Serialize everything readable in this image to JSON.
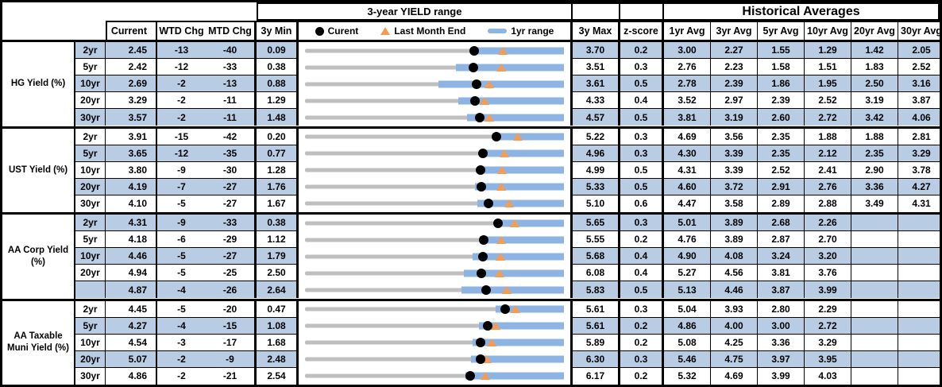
{
  "header": {
    "top": {
      "yield_range": "3-year YIELD range",
      "historical": "Historical Averages"
    },
    "cols": {
      "current": "Current",
      "wtd": "WTD Chg",
      "mtd": "MTD Chg",
      "min3y": "3y Min",
      "max3y": "3y Max",
      "zscore": "z-score",
      "avgs": [
        "1yr Avg",
        "3yr Avg",
        "5yr Avg",
        "10yr Avg",
        "20yr Avg",
        "30yr Avg"
      ]
    },
    "legend": {
      "current": "Curent",
      "last_month": "Last Month End",
      "range1yr": "1yr range"
    }
  },
  "colors": {
    "row_shade": "#B8CCE4",
    "bar_blue": "#8DB4E2",
    "track_gray": "#BFBFBF",
    "marker_orange": "#F49C54",
    "marker_black": "#000000"
  },
  "chart_data": {
    "type": "table",
    "title": "3-year YIELD range",
    "note": "Each row has a bullet chart: gray track spans 3y Min..3y Max, blue bar = 1yr range, black dot = current yield, orange triangle = last month end.",
    "groups": [
      {
        "label": "HG Yield (%)",
        "rows": [
          {
            "tenor": "2yr",
            "current": "2.45",
            "wtd": "-13",
            "mtd": "-40",
            "min": "0.09",
            "max": "3.70",
            "z": "0.2",
            "avgs": [
              "3.00",
              "2.27",
              "1.55",
              "1.29",
              "1.42",
              "2.05"
            ],
            "chart": {
              "min": 0.09,
              "max": 3.7,
              "cur": 2.45,
              "lme": 2.85,
              "lo": 2.4
            }
          },
          {
            "tenor": "5yr",
            "current": "2.42",
            "wtd": "-12",
            "mtd": "-33",
            "min": "0.38",
            "max": "3.51",
            "z": "0.3",
            "avgs": [
              "2.76",
              "2.23",
              "1.58",
              "1.51",
              "1.83",
              "2.52"
            ],
            "chart": {
              "min": 0.38,
              "max": 3.51,
              "cur": 2.42,
              "lme": 2.75,
              "lo": 2.2
            }
          },
          {
            "tenor": "10yr",
            "current": "2.69",
            "wtd": "-2",
            "mtd": "-13",
            "min": "0.88",
            "max": "3.61",
            "z": "0.5",
            "avgs": [
              "2.78",
              "2.39",
              "1.86",
              "1.95",
              "2.50",
              "3.16"
            ],
            "chart": {
              "min": 0.88,
              "max": 3.61,
              "cur": 2.69,
              "lme": 2.82,
              "lo": 2.29
            }
          },
          {
            "tenor": "20yr",
            "current": "3.29",
            "wtd": "-2",
            "mtd": "-11",
            "min": "1.29",
            "max": "4.33",
            "z": "0.4",
            "avgs": [
              "3.52",
              "2.97",
              "2.39",
              "2.52",
              "3.19",
              "3.87"
            ],
            "chart": {
              "min": 1.29,
              "max": 4.33,
              "cur": 3.29,
              "lme": 3.4,
              "lo": 3.09
            }
          },
          {
            "tenor": "30yr",
            "current": "3.57",
            "wtd": "-2",
            "mtd": "-11",
            "min": "1.48",
            "max": "4.57",
            "z": "0.5",
            "avgs": [
              "3.81",
              "3.19",
              "2.60",
              "2.72",
              "3.42",
              "4.06"
            ],
            "chart": {
              "min": 1.48,
              "max": 4.57,
              "cur": 3.57,
              "lme": 3.68,
              "lo": 3.41
            }
          }
        ]
      },
      {
        "label": "UST Yield (%)",
        "rows": [
          {
            "tenor": "2yr",
            "current": "3.91",
            "wtd": "-15",
            "mtd": "-42",
            "min": "0.20",
            "max": "5.22",
            "z": "0.3",
            "avgs": [
              "4.69",
              "3.56",
              "2.35",
              "1.88",
              "1.88",
              "2.81"
            ],
            "chart": {
              "min": 0.2,
              "max": 5.22,
              "cur": 3.91,
              "lme": 4.33,
              "lo": 3.88
            }
          },
          {
            "tenor": "5yr",
            "current": "3.65",
            "wtd": "-12",
            "mtd": "-35",
            "min": "0.77",
            "max": "4.96",
            "z": "0.3",
            "avgs": [
              "4.30",
              "3.39",
              "2.35",
              "2.12",
              "2.35",
              "3.29"
            ],
            "chart": {
              "min": 0.77,
              "max": 4.96,
              "cur": 3.65,
              "lme": 4.0,
              "lo": 3.6
            }
          },
          {
            "tenor": "10yr",
            "current": "3.80",
            "wtd": "-9",
            "mtd": "-30",
            "min": "1.28",
            "max": "4.99",
            "z": "0.5",
            "avgs": [
              "4.31",
              "3.39",
              "2.52",
              "2.41",
              "2.90",
              "3.78"
            ],
            "chart": {
              "min": 1.28,
              "max": 4.99,
              "cur": 3.8,
              "lme": 4.1,
              "lo": 3.75
            }
          },
          {
            "tenor": "20yr",
            "current": "4.19",
            "wtd": "-7",
            "mtd": "-27",
            "min": "1.76",
            "max": "5.33",
            "z": "0.5",
            "avgs": [
              "4.60",
              "3.72",
              "2.91",
              "2.76",
              "3.36",
              "4.27"
            ],
            "chart": {
              "min": 1.76,
              "max": 5.33,
              "cur": 4.19,
              "lme": 4.46,
              "lo": 4.1
            }
          },
          {
            "tenor": "30yr",
            "current": "4.10",
            "wtd": "-5",
            "mtd": "-27",
            "min": "1.67",
            "max": "5.10",
            "z": "0.6",
            "avgs": [
              "4.47",
              "3.58",
              "2.89",
              "2.88",
              "3.49",
              "4.31"
            ],
            "chart": {
              "min": 1.67,
              "max": 5.1,
              "cur": 4.1,
              "lme": 4.37,
              "lo": 3.95
            }
          }
        ]
      },
      {
        "label": "AA Corp Yield (%)",
        "rows": [
          {
            "tenor": "2yr",
            "current": "4.31",
            "wtd": "-9",
            "mtd": "-33",
            "min": "0.38",
            "max": "5.65",
            "z": "0.3",
            "avgs": [
              "5.01",
              "3.89",
              "2.68",
              "2.26",
              "",
              ""
            ],
            "chart": {
              "min": 0.38,
              "max": 5.65,
              "cur": 4.31,
              "lme": 4.64,
              "lo": 4.24
            }
          },
          {
            "tenor": "5yr",
            "current": "4.18",
            "wtd": "-6",
            "mtd": "-29",
            "min": "1.12",
            "max": "5.55",
            "z": "0.2",
            "avgs": [
              "4.76",
              "3.89",
              "2.87",
              "2.70",
              "",
              ""
            ],
            "chart": {
              "min": 1.12,
              "max": 5.55,
              "cur": 4.18,
              "lme": 4.47,
              "lo": 4.11
            }
          },
          {
            "tenor": "10yr",
            "current": "4.46",
            "wtd": "-5",
            "mtd": "-27",
            "min": "1.79",
            "max": "5.68",
            "z": "0.4",
            "avgs": [
              "4.90",
              "4.08",
              "3.24",
              "3.20",
              "",
              ""
            ],
            "chart": {
              "min": 1.79,
              "max": 5.68,
              "cur": 4.46,
              "lme": 4.73,
              "lo": 4.31
            }
          },
          {
            "tenor": "20yr",
            "current": "4.94",
            "wtd": "-5",
            "mtd": "-25",
            "min": "2.50",
            "max": "6.08",
            "z": "0.4",
            "avgs": [
              "5.27",
              "4.56",
              "3.81",
              "3.76",
              "",
              ""
            ],
            "chart": {
              "min": 2.5,
              "max": 6.08,
              "cur": 4.94,
              "lme": 5.19,
              "lo": 4.7
            }
          },
          {
            "tenor": "",
            "current": "4.87",
            "wtd": "-4",
            "mtd": "-26",
            "min": "2.64",
            "max": "5.83",
            "z": "0.5",
            "avgs": [
              "5.13",
              "4.46",
              "3.87",
              "3.99",
              "",
              ""
            ],
            "chart": {
              "min": 2.64,
              "max": 5.83,
              "cur": 4.87,
              "lme": 5.13,
              "lo": 4.57
            }
          }
        ]
      },
      {
        "label": "AA Taxable Muni Yield (%)",
        "rows": [
          {
            "tenor": "2yr",
            "current": "4.45",
            "wtd": "-5",
            "mtd": "-20",
            "min": "0.47",
            "max": "5.61",
            "z": "0.3",
            "avgs": [
              "5.04",
              "3.93",
              "2.80",
              "2.29",
              "",
              ""
            ],
            "chart": {
              "min": 0.47,
              "max": 5.61,
              "cur": 4.45,
              "lme": 4.65,
              "lo": 4.26
            }
          },
          {
            "tenor": "5yr",
            "current": "4.27",
            "wtd": "-4",
            "mtd": "-15",
            "min": "1.08",
            "max": "5.61",
            "z": "0.2",
            "avgs": [
              "4.86",
              "4.00",
              "3.00",
              "2.72",
              "",
              ""
            ],
            "chart": {
              "min": 1.08,
              "max": 5.61,
              "cur": 4.27,
              "lme": 4.42,
              "lo": 4.12
            }
          },
          {
            "tenor": "10yr",
            "current": "4.54",
            "wtd": "-3",
            "mtd": "-17",
            "min": "1.68",
            "max": "5.89",
            "z": "0.2",
            "avgs": [
              "5.08",
              "4.25",
              "3.36",
              "3.29",
              "",
              ""
            ],
            "chart": {
              "min": 1.68,
              "max": 5.89,
              "cur": 4.54,
              "lme": 4.71,
              "lo": 4.41
            }
          },
          {
            "tenor": "20yr",
            "current": "5.07",
            "wtd": "-2",
            "mtd": "-9",
            "min": "2.48",
            "max": "6.30",
            "z": "0.3",
            "avgs": [
              "5.46",
              "4.75",
              "3.97",
              "3.95",
              "",
              ""
            ],
            "chart": {
              "min": 2.48,
              "max": 6.3,
              "cur": 5.07,
              "lme": 5.16,
              "lo": 4.93
            }
          },
          {
            "tenor": "30yr",
            "current": "4.86",
            "wtd": "-2",
            "mtd": "-21",
            "min": "2.54",
            "max": "6.17",
            "z": "0.2",
            "avgs": [
              "5.32",
              "4.69",
              "3.99",
              "4.03",
              "",
              ""
            ],
            "chart": {
              "min": 2.54,
              "max": 6.17,
              "cur": 4.86,
              "lme": 5.07,
              "lo": 4.79
            }
          }
        ]
      }
    ]
  }
}
